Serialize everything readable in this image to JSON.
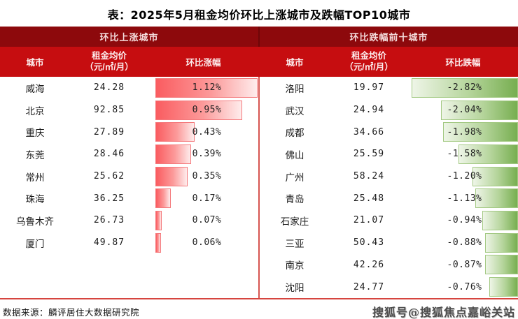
{
  "title": "表：2025年5月租金均价环比上涨城市及跌幅TOP10城市",
  "colors": {
    "group_header_bg": "#8d090c",
    "column_header_bg": "#c60d10",
    "rise_bar": "#fa5c60",
    "fall_bar": "#77ae50",
    "divider_red": "#d6554f"
  },
  "panels": {
    "up": {
      "group_header": "环比上涨城市",
      "columns": {
        "city": "城市",
        "price_line1": "租金均价",
        "price_line2": "（元/㎡/月）",
        "change": "环比涨幅"
      },
      "rows": [
        {
          "city": "威海",
          "price": "24.28",
          "pct": "1.12%",
          "value": 1.12
        },
        {
          "city": "北京",
          "price": "92.85",
          "pct": "0.95%",
          "value": 0.95
        },
        {
          "city": "重庆",
          "price": "27.89",
          "pct": "0.43%",
          "value": 0.43
        },
        {
          "city": "东莞",
          "price": "28.46",
          "pct": "0.39%",
          "value": 0.39
        },
        {
          "city": "常州",
          "price": "25.62",
          "pct": "0.35%",
          "value": 0.35
        },
        {
          "city": "珠海",
          "price": "36.25",
          "pct": "0.17%",
          "value": 0.17
        },
        {
          "city": "乌鲁木齐",
          "price": "26.73",
          "pct": "0.07%",
          "value": 0.07
        },
        {
          "city": "厦门",
          "price": "49.87",
          "pct": "0.06%",
          "value": 0.06
        }
      ]
    },
    "down": {
      "group_header": "环比跌幅前十城市",
      "columns": {
        "city": "城市",
        "price_line1": "租金均价",
        "price_line2": "（元/㎡/月）",
        "change": "环比跌幅"
      },
      "rows": [
        {
          "city": "洛阳",
          "price": "19.97",
          "pct": "-2.82%",
          "value": -2.82
        },
        {
          "city": "武汉",
          "price": "24.94",
          "pct": "-2.04%",
          "value": -2.04
        },
        {
          "city": "成都",
          "price": "34.66",
          "pct": "-1.98%",
          "value": -1.98
        },
        {
          "city": "佛山",
          "price": "25.59",
          "pct": "-1.58%",
          "value": -1.58
        },
        {
          "city": "广州",
          "price": "58.24",
          "pct": "-1.20%",
          "value": -1.2
        },
        {
          "city": "青岛",
          "price": "25.48",
          "pct": "-1.13%",
          "value": -1.13
        },
        {
          "city": "石家庄",
          "price": "21.07",
          "pct": "-0.94%",
          "value": -0.94
        },
        {
          "city": "三亚",
          "price": "50.43",
          "pct": "-0.88%",
          "value": -0.88
        },
        {
          "city": "南京",
          "price": "42.26",
          "pct": "-0.87%",
          "value": -0.87
        },
        {
          "city": "沈阳",
          "price": "24.77",
          "pct": "-0.76%",
          "value": -0.76
        }
      ]
    }
  },
  "footer": {
    "source": "数据来源：麟评居住大数据研究院",
    "watermark": "搜狐号@搜狐焦点嘉峪关站"
  },
  "chart_data": [
    {
      "type": "bar",
      "title": "环比上涨城市",
      "orientation": "horizontal",
      "categories": [
        "威海",
        "北京",
        "重庆",
        "东莞",
        "常州",
        "珠海",
        "乌鲁木齐",
        "厦门"
      ],
      "series": [
        {
          "name": "租金均价（元/㎡/月）",
          "values": [
            24.28,
            92.85,
            27.89,
            28.46,
            25.62,
            36.25,
            26.73,
            49.87
          ]
        },
        {
          "name": "环比涨幅(%)",
          "values": [
            1.12,
            0.95,
            0.43,
            0.39,
            0.35,
            0.17,
            0.07,
            0.06
          ]
        }
      ],
      "xlabel": "环比涨幅",
      "ylabel": "城市",
      "xlim": [
        0,
        1.12
      ],
      "grid": false,
      "legend": false
    },
    {
      "type": "bar",
      "title": "环比跌幅前十城市",
      "orientation": "horizontal",
      "categories": [
        "洛阳",
        "武汉",
        "成都",
        "佛山",
        "广州",
        "青岛",
        "石家庄",
        "三亚",
        "南京",
        "沈阳"
      ],
      "series": [
        {
          "name": "租金均价（元/㎡/月）",
          "values": [
            19.97,
            24.94,
            34.66,
            25.59,
            58.24,
            25.48,
            21.07,
            50.43,
            42.26,
            24.77
          ]
        },
        {
          "name": "环比跌幅(%)",
          "values": [
            -2.82,
            -2.04,
            -1.98,
            -1.58,
            -1.2,
            -1.13,
            -0.94,
            -0.88,
            -0.87,
            -0.76
          ]
        }
      ],
      "xlabel": "环比跌幅",
      "ylabel": "城市",
      "xlim": [
        -2.82,
        0
      ],
      "grid": false,
      "legend": false
    }
  ]
}
